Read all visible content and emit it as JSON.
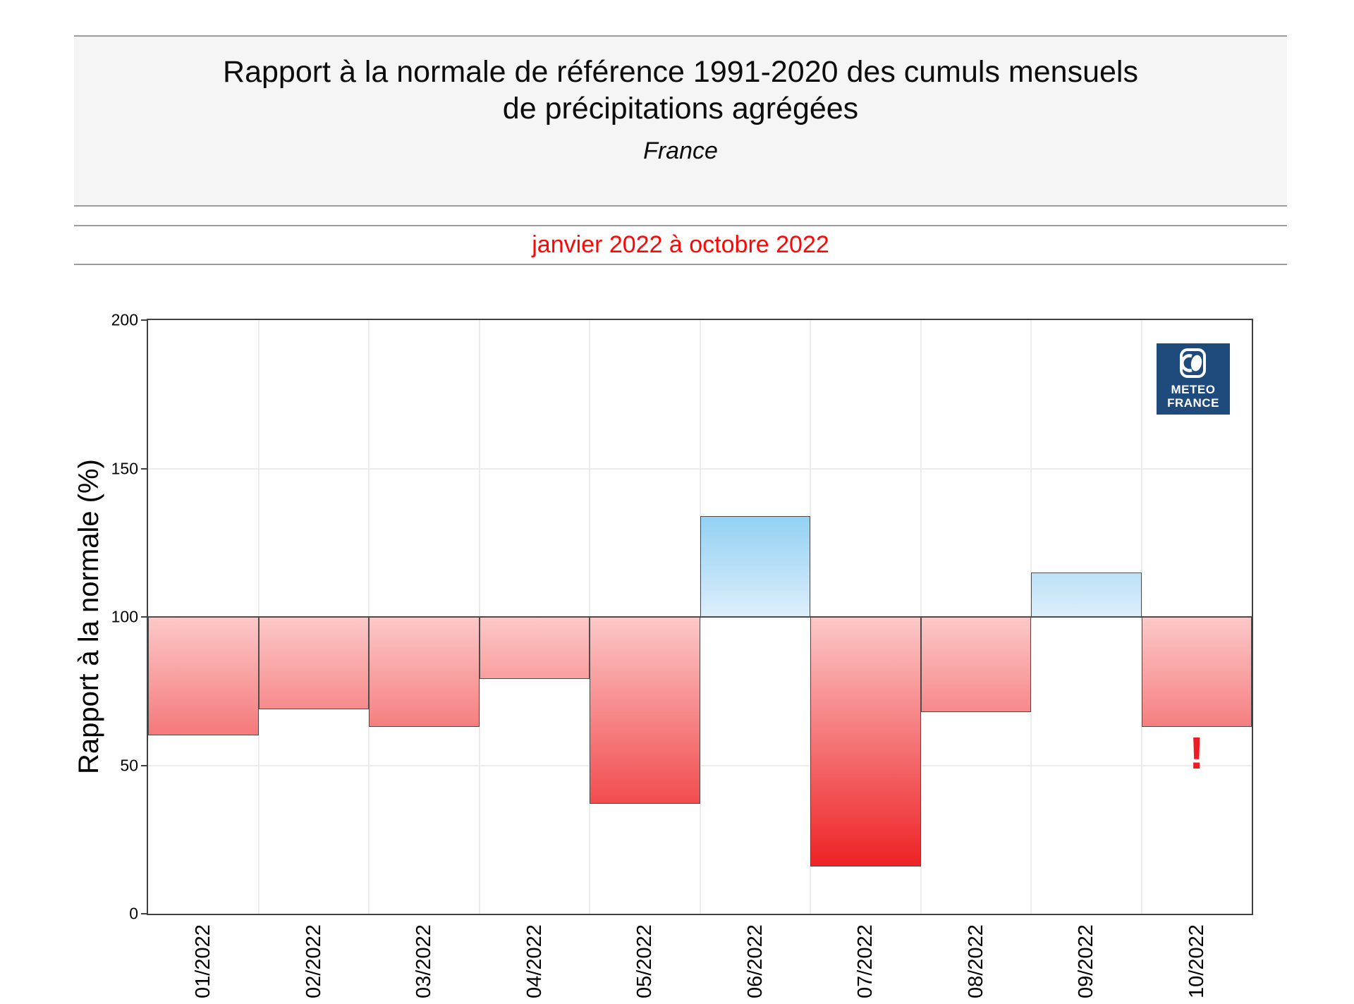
{
  "header": {
    "title_line1": "Rapport à la normale de référence 1991-2020 des cumuls mensuels",
    "title_line2": "de précipitations agrégées",
    "region": "France"
  },
  "period": {
    "label": "janvier 2022 à octobre 2022",
    "color": "#ff0606"
  },
  "logo": {
    "line1": "METEO",
    "line2": "FRANCE",
    "bg_color": "#1f4a7c"
  },
  "chart_data": {
    "type": "bar",
    "title": "Rapport à la normale de référence 1991-2020 des cumuls mensuels de précipitations agrégées - France",
    "subtitle": "janvier 2022 à octobre 2022",
    "ylabel": "Rapport à la normale (%)",
    "xlabel": "",
    "ylim": [
      0,
      200
    ],
    "yticks": [
      0,
      50,
      100,
      150,
      200
    ],
    "grid_y": [
      50,
      150
    ],
    "grid": "on",
    "baseline": 100,
    "categories": [
      "01/2022",
      "02/2022",
      "03/2022",
      "04/2022",
      "05/2022",
      "06/2022",
      "07/2022",
      "08/2022",
      "09/2022",
      "10/2022"
    ],
    "values": [
      60,
      69,
      63,
      79,
      37,
      134,
      16,
      68,
      115,
      63
    ],
    "annotations": [
      {
        "text": "!",
        "month_index": 9,
        "color": "#ec1c24"
      }
    ],
    "style": {
      "red_light": "#fcc8c8",
      "red_deep": "#ee2225",
      "blue_light": "#ddeefb",
      "blue_deep": "#92d1f3",
      "bar_border": "#4d4d4d"
    }
  }
}
